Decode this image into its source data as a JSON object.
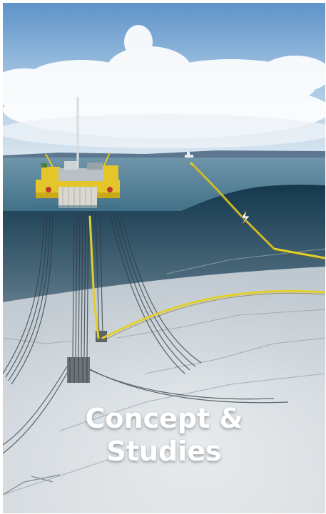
{
  "card": {
    "title_line1": "Concept &",
    "title_line2": "Studies",
    "image_subject": "offshore-platform-subsea-field-illustration"
  },
  "colors": {
    "sky_top": "#5f93c9",
    "sea": "#3f6f86",
    "seabed": "#e4e7ea",
    "platform": "#e5c62a",
    "pipeline": "#e3cf2a",
    "title_text": "#ffffff"
  }
}
